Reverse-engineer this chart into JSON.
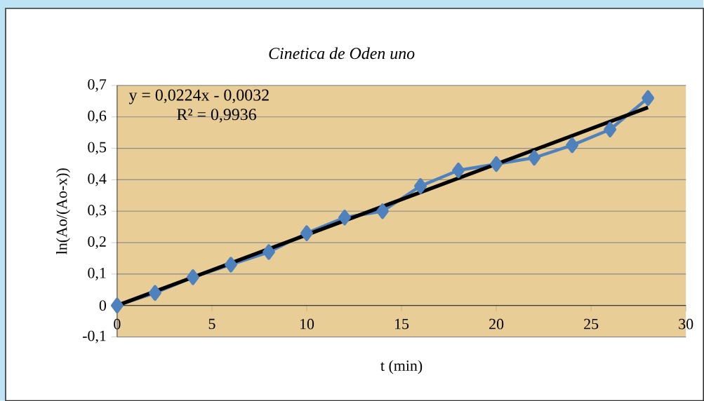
{
  "chart_data": {
    "type": "line",
    "title": "Cinetica de Oden uno",
    "xlabel": "t (min)",
    "ylabel": "ln(Ao/(Ao-x))",
    "annotations": [
      "y = 0,0224x - 0,0032",
      "R² = 0,9936"
    ],
    "series": [
      {
        "color": "#4f81bd",
        "x": [
          0,
          2,
          4,
          6,
          8,
          10,
          12,
          14,
          16,
          18,
          20,
          22,
          24,
          26,
          28
        ],
        "values": [
          0,
          0.04,
          0.09,
          0.13,
          0.17,
          0.23,
          0.28,
          0.3,
          0.38,
          0.43,
          0.45,
          0.47,
          0.51,
          0.56,
          0.66
        ],
        "marker": "diamond"
      },
      {
        "type": "line",
        "color": "#000000",
        "x": [
          0,
          28
        ],
        "values": [
          0,
          0.63
        ],
        "marker": "none"
      }
    ],
    "xlim": [
      0,
      30
    ],
    "xticks": [
      0,
      5,
      10,
      15,
      20,
      25,
      30
    ],
    "ylim": [
      -0.1,
      0.7
    ],
    "yticks": [
      {
        "value": -0.1,
        "label": "-0,1"
      },
      0,
      {
        "value": 0.1,
        "label": "0,1"
      },
      {
        "value": 0.2,
        "label": "0,2"
      },
      {
        "value": 0.3,
        "label": "0,3"
      },
      {
        "value": 0.4,
        "label": "0,4"
      },
      {
        "value": 0.5,
        "label": "0,5"
      },
      {
        "value": 0.6,
        "label": "0,6"
      },
      {
        "value": 0.7,
        "label": "0,7"
      }
    ],
    "grid": "y",
    "legend": false
  }
}
